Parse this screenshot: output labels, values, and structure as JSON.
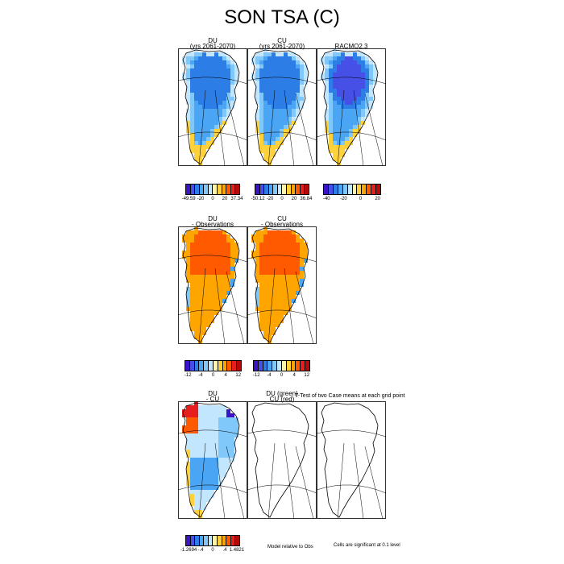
{
  "title": "SON TSA (C)",
  "chart_data": {
    "type": "heatmap",
    "title": "SON TSA (C)",
    "rows": [
      {
        "panels": [
          {
            "title": "DU",
            "subtitle": "(yrs 2061-2070)",
            "map": "model"
          },
          {
            "title": "CU",
            "subtitle": "(yrs 2061-2070)",
            "map": "model"
          },
          {
            "title": "RACMO2.3",
            "subtitle": "",
            "map": "obs"
          }
        ],
        "colorbars": [
          {
            "labels": [
              "-49.59",
              "-20",
              "0",
              "20",
              "37.34"
            ],
            "colors": [
              "#3c14c8",
              "#4650e6",
              "#2d7de6",
              "#4ba5f5",
              "#80c8fa",
              "#c3e6ff",
              "#fff5aa",
              "#ffd23c",
              "#ffa500",
              "#ff5a00",
              "#e61e1e",
              "#b40a0a"
            ]
          },
          {
            "labels": [
              "-50.12",
              "-20",
              "0",
              "20",
              "36.84"
            ],
            "colors": [
              "#3c14c8",
              "#4650e6",
              "#2d7de6",
              "#4ba5f5",
              "#80c8fa",
              "#c3e6ff",
              "#fff5aa",
              "#ffd23c",
              "#ffa500",
              "#ff5a00",
              "#e61e1e",
              "#b40a0a"
            ]
          },
          {
            "labels": [
              "-40",
              "-20",
              "0",
              "20"
            ],
            "colors": [
              "#3c14c8",
              "#4650e6",
              "#2d7de6",
              "#4ba5f5",
              "#80c8fa",
              "#c3e6ff",
              "#fff5aa",
              "#ffd23c",
              "#ffa500",
              "#ff5a00",
              "#e61e1e",
              "#b40a0a"
            ]
          }
        ]
      },
      {
        "panels": [
          {
            "title": "DU",
            "subtitle": "- Observations",
            "map": "bias"
          },
          {
            "title": "CU",
            "subtitle": "- Observations",
            "map": "bias"
          }
        ],
        "colorbars": [
          {
            "labels": [
              "-12",
              "-4",
              "0",
              "4",
              "12"
            ],
            "colors": [
              "#3c14c8",
              "#4650e6",
              "#2d7de6",
              "#4ba5f5",
              "#80c8fa",
              "#c3e6ff",
              "#fff5aa",
              "#ffd23c",
              "#ffa500",
              "#ff5a00",
              "#e61e1e",
              "#b40a0a"
            ]
          },
          {
            "labels": [
              "-12",
              "-4",
              "0",
              "4",
              "12"
            ],
            "colors": [
              "#3c14c8",
              "#4650e6",
              "#2d7de6",
              "#4ba5f5",
              "#80c8fa",
              "#c3e6ff",
              "#fff5aa",
              "#ffd23c",
              "#ffa500",
              "#ff5a00",
              "#e61e1e",
              "#b40a0a"
            ]
          }
        ]
      },
      {
        "panels": [
          {
            "title": "DU",
            "subtitle": "- CU",
            "map": "diff"
          },
          {
            "title": "DU (green)",
            "subtitle": "CU (red)",
            "map": "blank"
          },
          {
            "title": "",
            "subtitle": "",
            "map": "blank"
          }
        ],
        "ttest_title": "T-Test of two Case means at each grid point",
        "colorbars": [
          {
            "labels": [
              "-1.2694",
              "-.4",
              "0",
              ".4",
              "1.4821"
            ],
            "colors": [
              "#3c14c8",
              "#4650e6",
              "#2d7de6",
              "#4ba5f5",
              "#80c8fa",
              "#c3e6ff",
              "#fff5aa",
              "#ffd23c",
              "#ffa500",
              "#ff5a00",
              "#e61e1e",
              "#b40a0a"
            ]
          }
        ],
        "notes": [
          "Model relative to Obs",
          "Cells are significant at 0.1 level"
        ]
      }
    ]
  }
}
